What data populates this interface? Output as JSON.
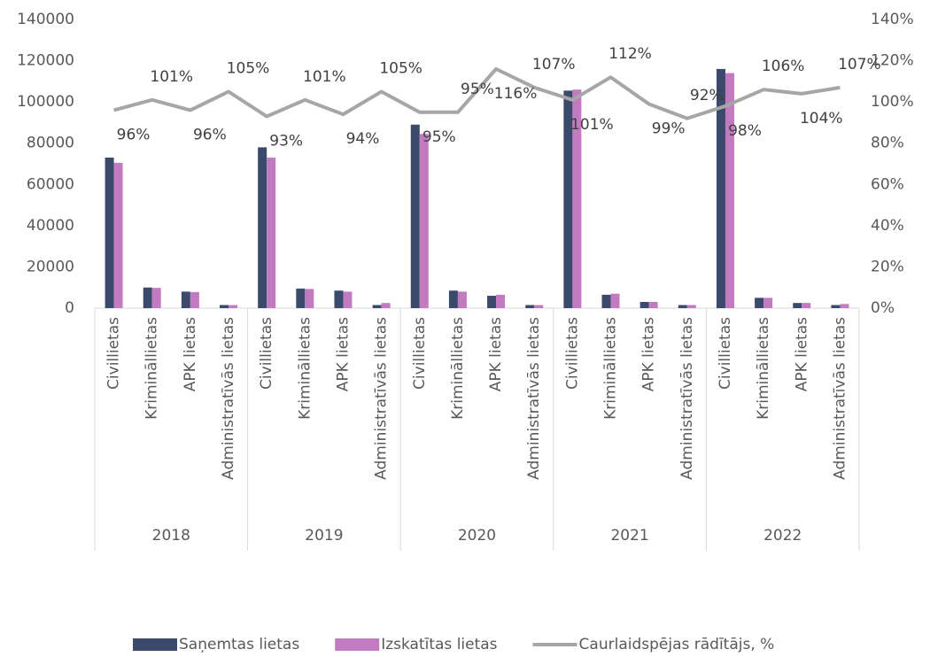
{
  "chart_data": {
    "type": "bar_line",
    "groups": [
      "2018",
      "2019",
      "2020",
      "2021",
      "2022"
    ],
    "categories": [
      "Civillietas",
      "Krimināllietas",
      "APK lietas",
      "Administratīvās lietas",
      "Civillietas",
      "Krimināllietas",
      "APK lietas",
      "Administratīvās lietas",
      "Civillietas",
      "Krimināllietas",
      "APK lietas",
      "Administratīvās lietas",
      "Civillietas",
      "Krimināllietas",
      "APK lietas",
      "Administratīvās lietas",
      "Civillietas",
      "Krimināllietas",
      "APK lietas",
      "Administratīvās lietas"
    ],
    "series": [
      {
        "name": "Saņemtas lietas",
        "color": "#3b4a6b",
        "type": "bar",
        "values": [
          73000,
          10000,
          8000,
          1500,
          78000,
          9500,
          8500,
          1500,
          89000,
          8500,
          6000,
          1500,
          105500,
          6500,
          3000,
          1500,
          116000,
          5000,
          2500,
          1500
        ]
      },
      {
        "name": "Izskatītas lietas",
        "color": "#c27bc0",
        "type": "bar",
        "values": [
          70500,
          9800,
          7800,
          1500,
          73000,
          9300,
          8000,
          2500,
          84500,
          8000,
          6500,
          1500,
          106000,
          7000,
          3000,
          1500,
          114000,
          5000,
          2500,
          2000
        ]
      },
      {
        "name": "Caurlaidspējas rādītājs, %",
        "color": "#a6a6a6",
        "type": "line",
        "axis": "y2",
        "values": [
          96,
          101,
          96,
          105,
          93,
          101,
          94,
          105,
          95,
          95,
          116,
          107,
          101,
          112,
          99,
          92,
          98,
          106,
          104,
          107
        ],
        "value_labels": [
          "96%",
          "101%",
          "96%",
          "105%",
          "93%",
          "101%",
          "94%",
          "105%",
          "95%",
          "95%",
          "116%",
          "107%",
          "101%",
          "112%",
          "99%",
          "92%",
          "98%",
          "106%",
          "104%",
          "107%"
        ]
      }
    ],
    "ylim": [
      0,
      140000
    ],
    "yticks": [
      0,
      20000,
      40000,
      60000,
      80000,
      100000,
      120000,
      140000
    ],
    "y2lim": [
      0,
      140
    ],
    "y2ticks": [
      {
        "value": 0,
        "label": "0%"
      },
      {
        "value": 20,
        "label": "20%"
      },
      {
        "value": 40,
        "label": "40%"
      },
      {
        "value": 60,
        "label": "60%"
      },
      {
        "value": 80,
        "label": "80%"
      },
      {
        "value": 100,
        "label": "100%"
      },
      {
        "value": 120,
        "label": "120%"
      },
      {
        "value": 140,
        "label": "140%"
      }
    ],
    "legend": "bottom"
  }
}
